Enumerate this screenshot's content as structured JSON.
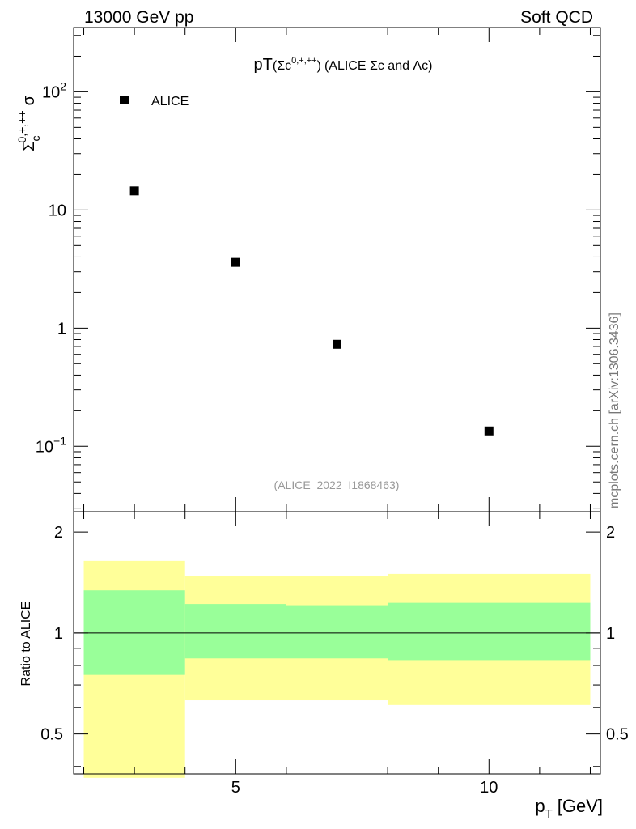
{
  "header": {
    "left": "13000 GeV pp",
    "right": "Soft QCD"
  },
  "side_label": "mcplots.cern.ch [arXiv:1306.3436]",
  "main_plot": {
    "title_prefix": "pT",
    "title_paren_open": "(",
    "title_sigma": "Σc",
    "title_sup": "0,+,++",
    "title_paren_close": ")",
    "title_rest": "(ALICE Σc and Λc)",
    "ylabel_base": "Σ",
    "ylabel_sub": "c",
    "ylabel_sup": "0,+,++",
    "ylabel_suffix": "σ",
    "analysis_id": "(ALICE_2022_I1868463)",
    "legend": "ALICE"
  },
  "ratio_plot": {
    "ylabel": "Ratio to ALICE"
  },
  "xlabel": "p",
  "xlabel_sub": "T",
  "xlabel_unit": "[GeV]",
  "colors": {
    "marker": "#000000",
    "band_inner": "#99ff99",
    "band_outer": "#ffff99",
    "analysis_id": "#999999",
    "side_label": "#777777"
  },
  "chart_data": [
    {
      "type": "scatter",
      "log_y": true,
      "xlim": [
        1.8,
        12.2
      ],
      "ylim": [
        0.028,
        350
      ],
      "x_ticks": [
        5,
        10
      ],
      "y_ticks": [
        {
          "value": 0.1,
          "label": "10",
          "sup": "−1"
        },
        {
          "value": 1,
          "label": "1"
        },
        {
          "value": 10,
          "label": "10"
        },
        {
          "value": 100,
          "label": "10",
          "sup": "2"
        }
      ],
      "series": [
        {
          "name": "ALICE",
          "x": [
            3,
            5,
            7,
            10
          ],
          "y": [
            14.5,
            3.6,
            0.73,
            0.135
          ]
        }
      ]
    },
    {
      "type": "area",
      "log_y": true,
      "xlim": [
        1.8,
        12.2
      ],
      "ylim": [
        0.38,
        2.3
      ],
      "x_ticks": [
        5,
        10
      ],
      "y_ticks": [
        {
          "value": 0.5,
          "label": "0.5"
        },
        {
          "value": 1,
          "label": "1"
        },
        {
          "value": 2,
          "label": "2"
        }
      ],
      "reference_line": 1,
      "bands": [
        {
          "x_low": 2,
          "x_high": 4,
          "inner": [
            0.75,
            1.34
          ],
          "outer": [
            0.37,
            1.64
          ]
        },
        {
          "x_low": 4,
          "x_high": 6,
          "inner": [
            0.84,
            1.22
          ],
          "outer": [
            0.63,
            1.48
          ]
        },
        {
          "x_low": 6,
          "x_high": 8,
          "inner": [
            0.84,
            1.21
          ],
          "outer": [
            0.63,
            1.48
          ]
        },
        {
          "x_low": 8,
          "x_high": 12,
          "inner": [
            0.83,
            1.23
          ],
          "outer": [
            0.61,
            1.5
          ]
        }
      ]
    }
  ]
}
